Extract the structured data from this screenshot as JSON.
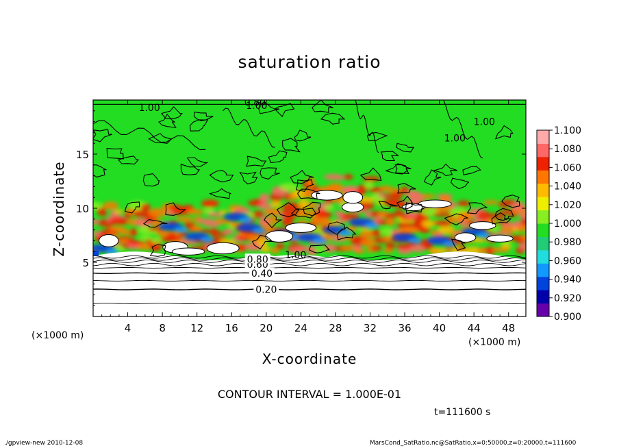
{
  "title": "saturation ratio",
  "xaxis": {
    "label": "X-coordinate",
    "unit_left": "(×1000 m)",
    "unit_right": "(×1000 m)"
  },
  "yaxis": {
    "label": "Z-coordinate"
  },
  "contour_interval": "CONTOUR INTERVAL = 1.000E-01",
  "time_label": "t=111600 s",
  "footer": {
    "left": "./gpview-new  2010-12-08",
    "right": "MarsCond_SatRatio.nc@SatRatio,x=0:50000,z=0:20000,t=111600"
  },
  "colors": {
    "dominant_field": "#22dd22",
    "colorbar": [
      "#6600aa",
      "#0000aa",
      "#0044dd",
      "#1199ff",
      "#22dddd",
      "#22cc77",
      "#22dd22",
      "#88ee22",
      "#eeee00",
      "#ffbb00",
      "#ff7700",
      "#ee2200",
      "#ff6666",
      "#ffaaaa"
    ]
  },
  "chart_data": {
    "type": "heatmap",
    "title": "saturation ratio",
    "xlabel": "X-coordinate",
    "ylabel": "Z-coordinate",
    "xunit": "(×1000 m)",
    "xlim": [
      0,
      50
    ],
    "ylim": [
      0,
      20
    ],
    "xticks": [
      4,
      8,
      12,
      16,
      20,
      24,
      28,
      32,
      36,
      40,
      44,
      48
    ],
    "yticks": [
      5,
      10,
      15
    ],
    "colorbar": {
      "ticks": [
        "1.100",
        "1.080",
        "1.060",
        "1.040",
        "1.020",
        "1.000",
        "0.980",
        "0.960",
        "0.940",
        "0.920",
        "0.900"
      ],
      "range": [
        0.9,
        1.1
      ]
    },
    "contour_labels": [
      {
        "text": "0.20",
        "x": 20,
        "z": 2.5
      },
      {
        "text": "0.40",
        "x": 19.5,
        "z": 4.0
      },
      {
        "text": "0.60",
        "x": 19.0,
        "z": 4.8
      },
      {
        "text": "0.80",
        "x": 19.0,
        "z": 5.3
      },
      {
        "text": "1.00",
        "x": 6.5,
        "z": 19.3
      },
      {
        "text": "0.80",
        "x": 18.7,
        "z": 19.8
      },
      {
        "text": "1.00",
        "x": 18.9,
        "z": 19.5
      },
      {
        "text": "1.00",
        "x": 45.2,
        "z": 18.0
      },
      {
        "text": "1.00",
        "x": 41.8,
        "z": 16.5
      },
      {
        "text": "1.00",
        "x": 23.4,
        "z": 5.7
      }
    ],
    "field_regions": {
      "z_0_to_5.5": "sub-saturated, contoured 0.10-0.90",
      "z_5.5_to_13": "supersaturated band 1.02-1.10 with values above 1.10 (white)",
      "z_13_to_20": "near 1.00"
    }
  }
}
